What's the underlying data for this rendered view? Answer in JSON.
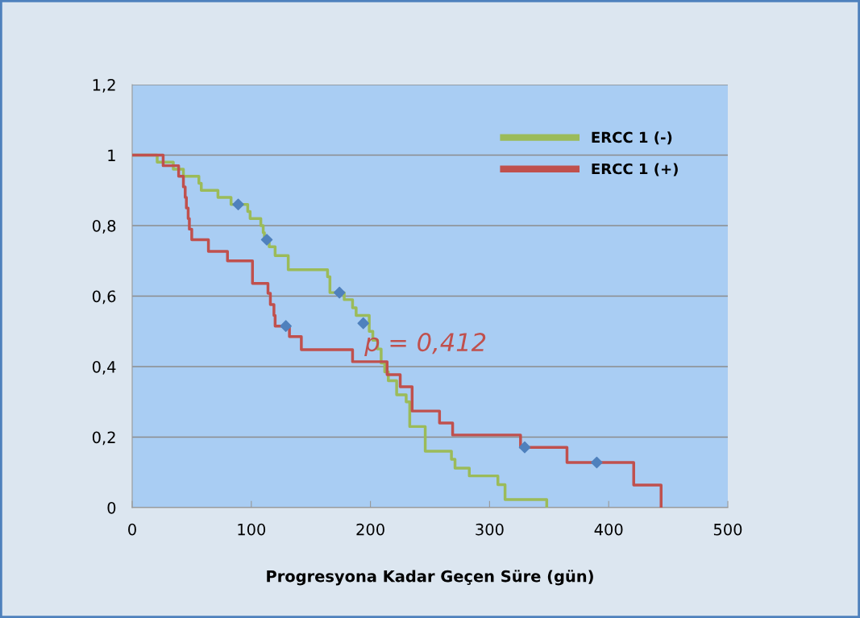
{
  "chart_data": {
    "type": "step",
    "xlabel": "Progresyona Kadar Geçen Süre (gün)",
    "annotations": [
      "p = 0,412"
    ],
    "xlim": [
      0,
      500
    ],
    "xticks": [
      0,
      100,
      200,
      300,
      400,
      500
    ],
    "ylim": [
      0,
      1.2
    ],
    "yticks": [
      {
        "value": 0,
        "label": "0"
      },
      {
        "value": 0.2,
        "label": "0,2"
      },
      {
        "value": 0.4,
        "label": "0,4"
      },
      {
        "value": 0.6,
        "label": "0,6"
      },
      {
        "value": 0.8,
        "label": "0,8"
      },
      {
        "value": 1,
        "label": "1"
      },
      {
        "value": 1.2,
        "label": "1,2"
      }
    ],
    "grid": "y",
    "legend": "top right",
    "line_style": "solid",
    "series": [
      {
        "name": "ERCC 1 (-)",
        "color": "#9bbb59",
        "marker": "none",
        "x": [
          0,
          21,
          34.5,
          43,
          56,
          58,
          72,
          83,
          97,
          99,
          108,
          110,
          111,
          115,
          120,
          131,
          164,
          166,
          178,
          185,
          188,
          199,
          202,
          206,
          209,
          212,
          215,
          222,
          230,
          233,
          246,
          268,
          271,
          283,
          307,
          313,
          348
        ],
        "values": [
          1.0,
          0.98,
          0.96,
          0.94,
          0.92,
          0.9,
          0.88,
          0.86,
          0.84,
          0.82,
          0.8,
          0.78,
          0.76,
          0.74,
          0.715,
          0.675,
          0.655,
          0.61,
          0.59,
          0.567,
          0.545,
          0.5,
          0.475,
          0.45,
          0.41,
          0.385,
          0.36,
          0.32,
          0.3,
          0.23,
          0.16,
          0.137,
          0.112,
          0.09,
          0.065,
          0.023,
          0
        ]
      },
      {
        "name": "ERCC 1 (+)",
        "color": "#c0504d",
        "marker": "none",
        "x": [
          0,
          26,
          39,
          43,
          44.5,
          45.5,
          47,
          48,
          50,
          64,
          80,
          101,
          114,
          116,
          119,
          120,
          132,
          142,
          185,
          214,
          225,
          235,
          258,
          269,
          326,
          365,
          421,
          444
        ],
        "values": [
          1.0,
          0.97,
          0.94,
          0.91,
          0.88,
          0.85,
          0.82,
          0.79,
          0.76,
          0.727,
          0.7,
          0.636,
          0.608,
          0.576,
          0.545,
          0.515,
          0.485,
          0.448,
          0.414,
          0.377,
          0.343,
          0.274,
          0.24,
          0.206,
          0.171,
          0.128,
          0.064,
          0
        ]
      },
      {
        "type": "scatter",
        "color": "#4f81bd",
        "marker": "diamond",
        "x": [
          89,
          113,
          174,
          194,
          129,
          329.5,
          390
        ],
        "values": [
          0.86,
          0.76,
          0.61,
          0.523,
          0.515,
          0.171,
          0.128
        ]
      }
    ]
  }
}
